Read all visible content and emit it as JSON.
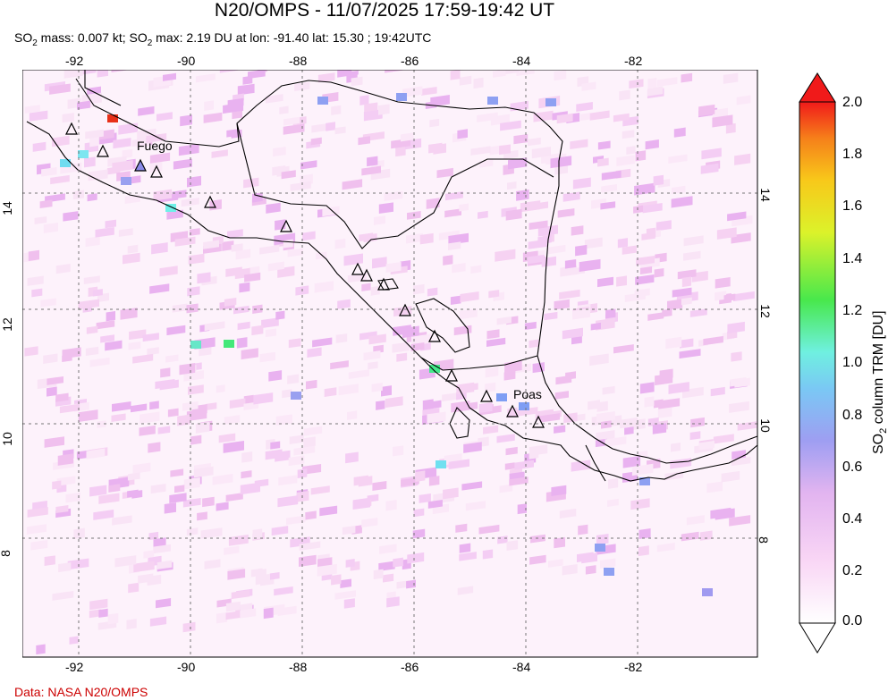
{
  "header": {
    "title": "N20/OMPS - 11/07/2025 17:59-19:42 UT",
    "subtitle_parts": {
      "mass_prefix": "SO",
      "mass_sub": "2",
      "mass_text": " mass: 0.007 kt; SO",
      "max_sub": "2",
      "max_text": " max: 2.19 DU at lon: -91.40 lat: 15.30 ; 19:42UTC"
    }
  },
  "footer": {
    "credit": "Data: NASA N20/OMPS"
  },
  "map": {
    "lon_ticks": [
      "-92",
      "-90",
      "-88",
      "-86",
      "-84",
      "-82"
    ],
    "lat_ticks": [
      "14",
      "12",
      "10",
      "8"
    ],
    "volcano_labels": [
      "Fuego",
      "Poas"
    ],
    "colors": {
      "land_outline": "#000000",
      "grid": "#777777",
      "frame": "#000000"
    }
  },
  "colorbar": {
    "title_prefix": "SO",
    "title_sub": "2",
    "title_suffix": " column TRM [DU]",
    "tick_labels": [
      "2.0",
      "1.8",
      "1.6",
      "1.4",
      "1.2",
      "1.0",
      "0.8",
      "0.6",
      "0.4",
      "0.2",
      "0.0"
    ],
    "range": [
      0.0,
      2.0
    ],
    "colors": [
      "#ffffff",
      "#f7c6f2",
      "#d9a8f0",
      "#9a9cf0",
      "#6fd6f4",
      "#55f0c8",
      "#3ee85a",
      "#c9f02a",
      "#f7d51c",
      "#f7861a",
      "#f01a1a"
    ]
  }
}
